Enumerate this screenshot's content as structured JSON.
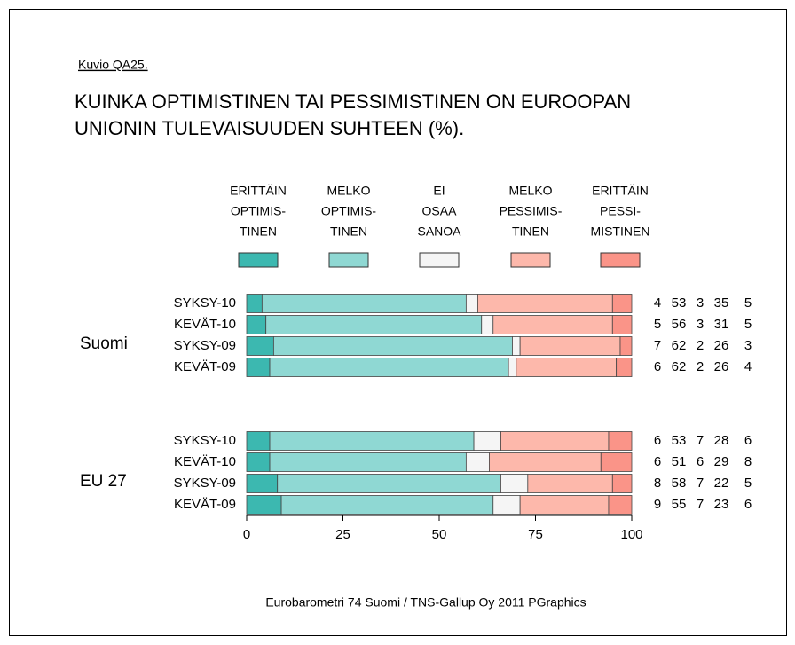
{
  "chart_data": {
    "type": "stacked_bar_horizontal",
    "caption": "Kuvio QA25.",
    "title": [
      "KUINKA OPTIMISTINEN TAI PESSIMISTINEN ON EUROOPAN",
      "UNIONIN TULEVAISUUDEN SUHTEEN (%)."
    ],
    "groups": [
      "Suomi",
      "EU 27"
    ],
    "categories": [
      [
        "SYKSY-10",
        "KEVÄT-10",
        "SYKSY-09",
        "KEVÄT-09"
      ],
      [
        "SYKSY-10",
        "KEVÄT-10",
        "SYKSY-09",
        "KEVÄT-09"
      ]
    ],
    "series": [
      {
        "name": [
          "ERITTÄIN",
          "OPTIMIS-",
          "TINEN"
        ],
        "color": "#3cb8b0",
        "values": [
          [
            4,
            5,
            7,
            6
          ],
          [
            6,
            6,
            8,
            9
          ]
        ]
      },
      {
        "name": [
          "MELKO",
          "OPTIMIS-",
          "TINEN"
        ],
        "color": "#8fd8d3",
        "values": [
          [
            53,
            56,
            62,
            62
          ],
          [
            53,
            51,
            58,
            55
          ]
        ]
      },
      {
        "name": [
          "EI",
          "OSAA",
          "SANOA"
        ],
        "color": "#f5f5f5",
        "values": [
          [
            3,
            3,
            2,
            2
          ],
          [
            7,
            6,
            7,
            7
          ]
        ]
      },
      {
        "name": [
          "MELKO",
          "PESSIMIS-",
          "TINEN"
        ],
        "color": "#fdb8ab",
        "values": [
          [
            35,
            31,
            26,
            26
          ],
          [
            28,
            29,
            22,
            23
          ]
        ]
      },
      {
        "name": [
          "ERITTÄIN",
          "PESSI-",
          "MISTINEN"
        ],
        "color": "#fa9488",
        "values": [
          [
            5,
            5,
            3,
            4
          ],
          [
            6,
            8,
            5,
            6
          ]
        ]
      }
    ],
    "xlim": [
      0,
      100
    ],
    "xticks": [
      0,
      25,
      50,
      75,
      100
    ],
    "source": "Eurobarometri 74 Suomi / TNS-Gallup Oy 2011  PGraphics"
  }
}
